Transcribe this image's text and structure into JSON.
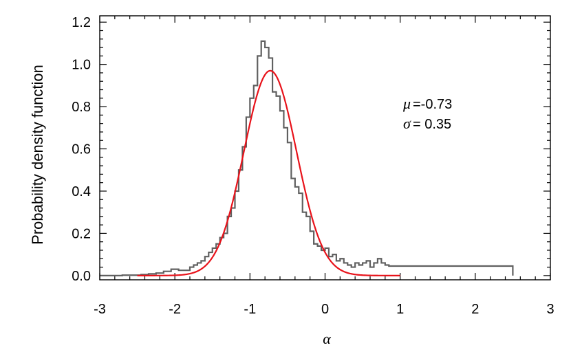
{
  "chart_data": {
    "type": "histogram-with-fit",
    "xlabel": "α",
    "ylabel": "Probability density function",
    "xlim": [
      -3,
      3
    ],
    "ylim": [
      -0.02,
      1.23
    ],
    "xticks": [
      -3,
      -2,
      -1,
      0,
      1,
      2,
      3
    ],
    "xtick_labels": [
      "-3",
      "-2",
      "-1",
      "0",
      "1",
      "2",
      "3"
    ],
    "yticks": [
      0.0,
      0.2,
      0.4,
      0.6,
      0.8,
      1.0,
      1.2
    ],
    "ytick_labels": [
      "0.0",
      "0.2",
      "0.4",
      "0.6",
      "0.8",
      "1.0",
      "1.2"
    ],
    "grid": false,
    "series": [
      {
        "kind": "step-histogram",
        "color": "#606060",
        "bin_edges": [
          -3.0,
          -2.7,
          -2.45,
          -2.35,
          -2.25,
          -2.15,
          -2.05,
          -1.95,
          -1.85,
          -1.8,
          -1.75,
          -1.7,
          -1.65,
          -1.6,
          -1.55,
          -1.5,
          -1.45,
          -1.4,
          -1.35,
          -1.3,
          -1.25,
          -1.2,
          -1.15,
          -1.1,
          -1.05,
          -1.0,
          -0.95,
          -0.9,
          -0.85,
          -0.8,
          -0.75,
          -0.7,
          -0.65,
          -0.6,
          -0.55,
          -0.5,
          -0.45,
          -0.4,
          -0.35,
          -0.3,
          -0.25,
          -0.2,
          -0.15,
          -0.1,
          -0.05,
          0.0,
          0.05,
          0.1,
          0.15,
          0.2,
          0.25,
          0.3,
          0.35,
          0.4,
          0.45,
          0.5,
          0.55,
          0.6,
          0.65,
          0.7,
          0.75,
          0.8,
          0.85,
          0.9,
          1.0,
          2.5
        ],
        "values": [
          0.0,
          0.002,
          0.005,
          0.008,
          0.012,
          0.02,
          0.03,
          0.025,
          0.025,
          0.04,
          0.05,
          0.06,
          0.07,
          0.09,
          0.11,
          0.13,
          0.15,
          0.18,
          0.2,
          0.28,
          0.32,
          0.4,
          0.5,
          0.61,
          0.75,
          0.84,
          0.9,
          1.04,
          1.11,
          1.08,
          1.03,
          0.87,
          0.85,
          0.78,
          0.7,
          0.63,
          0.46,
          0.42,
          0.39,
          0.3,
          0.28,
          0.21,
          0.15,
          0.14,
          0.12,
          0.13,
          0.09,
          0.1,
          0.07,
          0.08,
          0.06,
          0.05,
          0.04,
          0.06,
          0.05,
          0.06,
          0.07,
          0.04,
          0.06,
          0.08,
          0.06,
          0.05,
          0.045,
          0.045,
          0.045
        ]
      },
      {
        "kind": "gaussian-fit",
        "color": "#e8121a",
        "mu": -0.73,
        "sigma": 0.35,
        "amplitude": 0.97,
        "x_range": [
          -2.5,
          1.0
        ]
      }
    ],
    "annotations": [
      {
        "symbol": "μ",
        "text": "=-0.73"
      },
      {
        "symbol": "σ",
        "text": "= 0.35"
      }
    ]
  }
}
